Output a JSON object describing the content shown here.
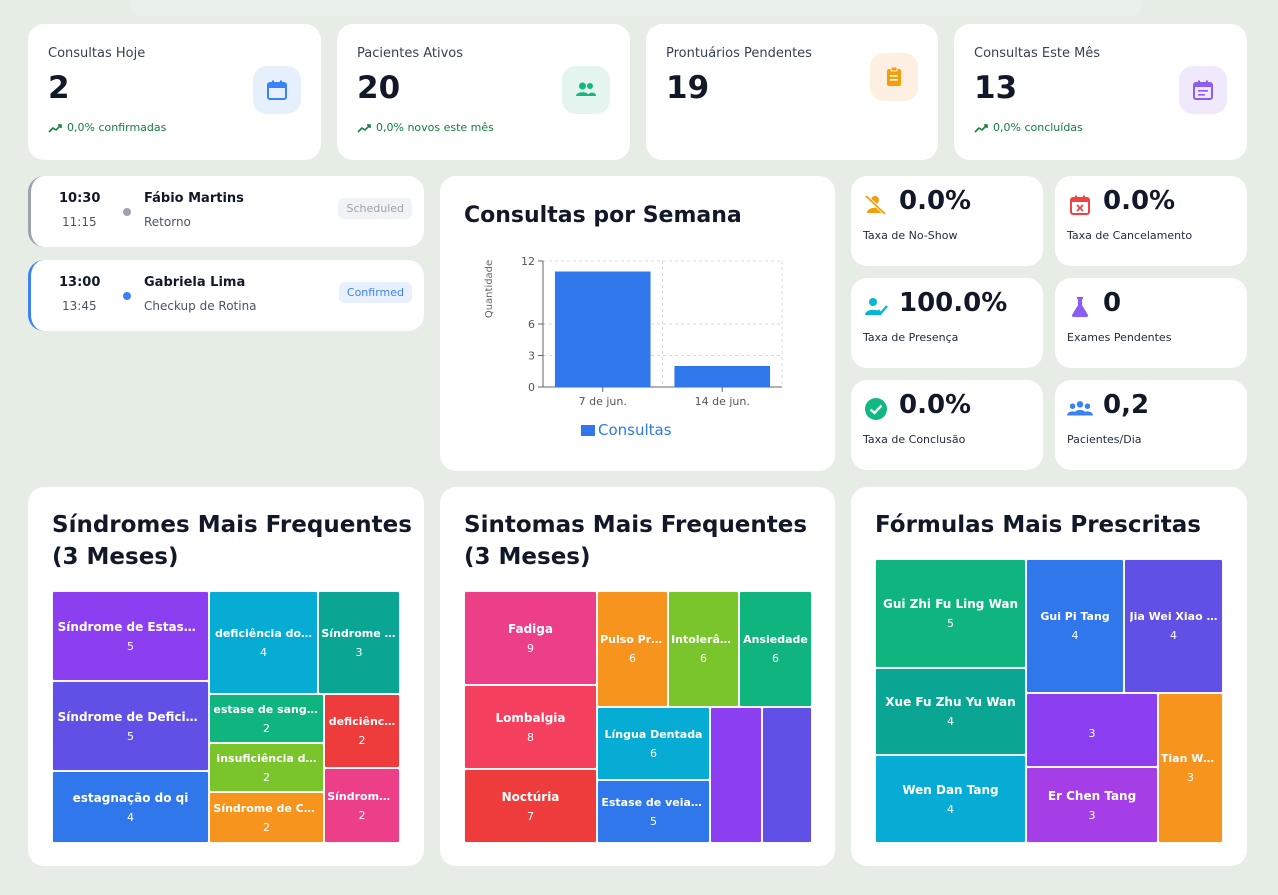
{
  "stats": [
    {
      "label": "Consultas Hoje",
      "value": "2",
      "sub": "0,0% confirmadas",
      "icon": "calendar-icon",
      "icon_color": "#3b82f6",
      "icon_bg": "#e6effc"
    },
    {
      "label": "Pacientes Ativos",
      "value": "20",
      "sub": "0,0% novos este mês",
      "icon": "users-icon",
      "icon_color": "#10b981",
      "icon_bg": "#e4f4ee"
    },
    {
      "label": "Prontuários Pendentes",
      "value": "19",
      "sub": "",
      "icon": "clipboard-icon",
      "icon_color": "#f59e0b",
      "icon_bg": "#fdf0e2"
    },
    {
      "label": "Consultas Este Mês",
      "value": "13",
      "sub": "0,0% concluídas",
      "icon": "calendar-list-icon",
      "icon_color": "#8b5cf6",
      "icon_bg": "#efe9fb"
    }
  ],
  "appointments": [
    {
      "start": "10:30",
      "end": "11:15",
      "patient": "Fábio Martins",
      "type": "Retorno",
      "status": "Scheduled",
      "accent": "#9ca3af"
    },
    {
      "start": "13:00",
      "end": "13:45",
      "patient": "Gabriela Lima",
      "type": "Checkup de Rotina",
      "status": "Confirmed",
      "accent": "#3b82f6"
    }
  ],
  "weekly_chart": {
    "title": "Consultas por Semana",
    "chart_data": {
      "type": "bar",
      "categories": [
        "7 de jun.",
        "14 de jun."
      ],
      "series": [
        {
          "name": "Consultas",
          "values": [
            11,
            2
          ]
        }
      ],
      "ylabel": "Quantidade",
      "yticks": [
        0,
        3,
        6,
        12
      ],
      "ylim": [
        0,
        12
      ],
      "grid": true,
      "legend": "bottom",
      "color": "#2f77ea"
    }
  },
  "metrics": [
    {
      "value": "0.0%",
      "label": "Taxa de No-Show",
      "icon": "user-off-icon",
      "color": "#f59e0b"
    },
    {
      "value": "0.0%",
      "label": "Taxa de Cancelamento",
      "icon": "calendar-x-icon",
      "color": "#ef4444"
    },
    {
      "value": "100.0%",
      "label": "Taxa de Presença",
      "icon": "user-check-icon",
      "color": "#06b6d4"
    },
    {
      "value": "0",
      "label": "Exames Pendentes",
      "icon": "flask-icon",
      "color": "#8b5cf6"
    },
    {
      "value": "0.0%",
      "label": "Taxa de Conclusão",
      "icon": "check-circle-icon",
      "color": "#10b981"
    },
    {
      "value": "0,2",
      "label": "Pacientes/Dia",
      "icon": "group-icon",
      "color": "#3b82f6"
    }
  ],
  "syndromes": {
    "title_line1": "Síndromes Mais Frequentes",
    "title_line2": "(3 Meses)",
    "tiles": [
      {
        "name": "Síndrome de Estase Sa…",
        "value": "5",
        "color": "#8b3ff0"
      },
      {
        "name": "Síndrome de Deficiênc…",
        "value": "5",
        "color": "#6050e6"
      },
      {
        "name": "estagnação do qi",
        "value": "4",
        "color": "#2f77ea"
      },
      {
        "name": "deficiência do…",
        "value": "4",
        "color": "#06acd4"
      },
      {
        "name": "Síndrome d…",
        "value": "3",
        "color": "#0aa693"
      },
      {
        "name": "estase de sangu…",
        "value": "2",
        "color": "#10b47e"
      },
      {
        "name": "deficiênc…",
        "value": "2",
        "color": "#ee3b3b"
      },
      {
        "name": "insuficiência d…",
        "value": "2",
        "color": "#7ac52c"
      },
      {
        "name": "Síndrome de Com…",
        "value": "2",
        "color": "#f7941d"
      },
      {
        "name": "Síndrome …",
        "value": "2",
        "color": "#ec3f88"
      }
    ]
  },
  "symptoms": {
    "title_line1": "Sintomas Mais Frequentes",
    "title_line2": "(3 Meses)",
    "tiles": [
      {
        "name": "Fadiga",
        "value": "9",
        "color": "#ec3f88"
      },
      {
        "name": "Lombalgia",
        "value": "8",
        "color": "#f43f5e"
      },
      {
        "name": "Noctúria",
        "value": "7",
        "color": "#ee3b3b"
      },
      {
        "name": "Pulso Pro…",
        "value": "6",
        "color": "#f7941d"
      },
      {
        "name": "Intolerân…",
        "value": "6",
        "color": "#7ac52c"
      },
      {
        "name": "Ansiedade",
        "value": "6",
        "color": "#10b47e"
      },
      {
        "name": "Língua Dentada",
        "value": "6",
        "color": "#06acd4"
      },
      {
        "name": "Estase de veia …",
        "value": "5",
        "color": "#2f77ea"
      },
      {
        "name": "",
        "value": "",
        "color": "#8b3ff0"
      },
      {
        "name": "",
        "value": "",
        "color": "#6050e6"
      }
    ]
  },
  "formulas": {
    "title": "Fórmulas Mais Prescritas",
    "tiles": [
      {
        "name": "Gui Zhi Fu Ling Wan",
        "value": "5",
        "color": "#10b47e"
      },
      {
        "name": "Xue Fu Zhu Yu Wan",
        "value": "4",
        "color": "#0aa693"
      },
      {
        "name": "Wen Dan Tang",
        "value": "4",
        "color": "#06acd4"
      },
      {
        "name": "Gui Pi Tang",
        "value": "4",
        "color": "#2f77ea"
      },
      {
        "name": "Jia Wei Xiao …",
        "value": "4",
        "color": "#6050e6"
      },
      {
        "name": "",
        "value": "3",
        "color": "#8b3ff0"
      },
      {
        "name": "Er Chen Tang",
        "value": "3",
        "color": "#a63ee8"
      },
      {
        "name": "Tian Wan…",
        "value": "3",
        "color": "#f7941d"
      }
    ]
  }
}
